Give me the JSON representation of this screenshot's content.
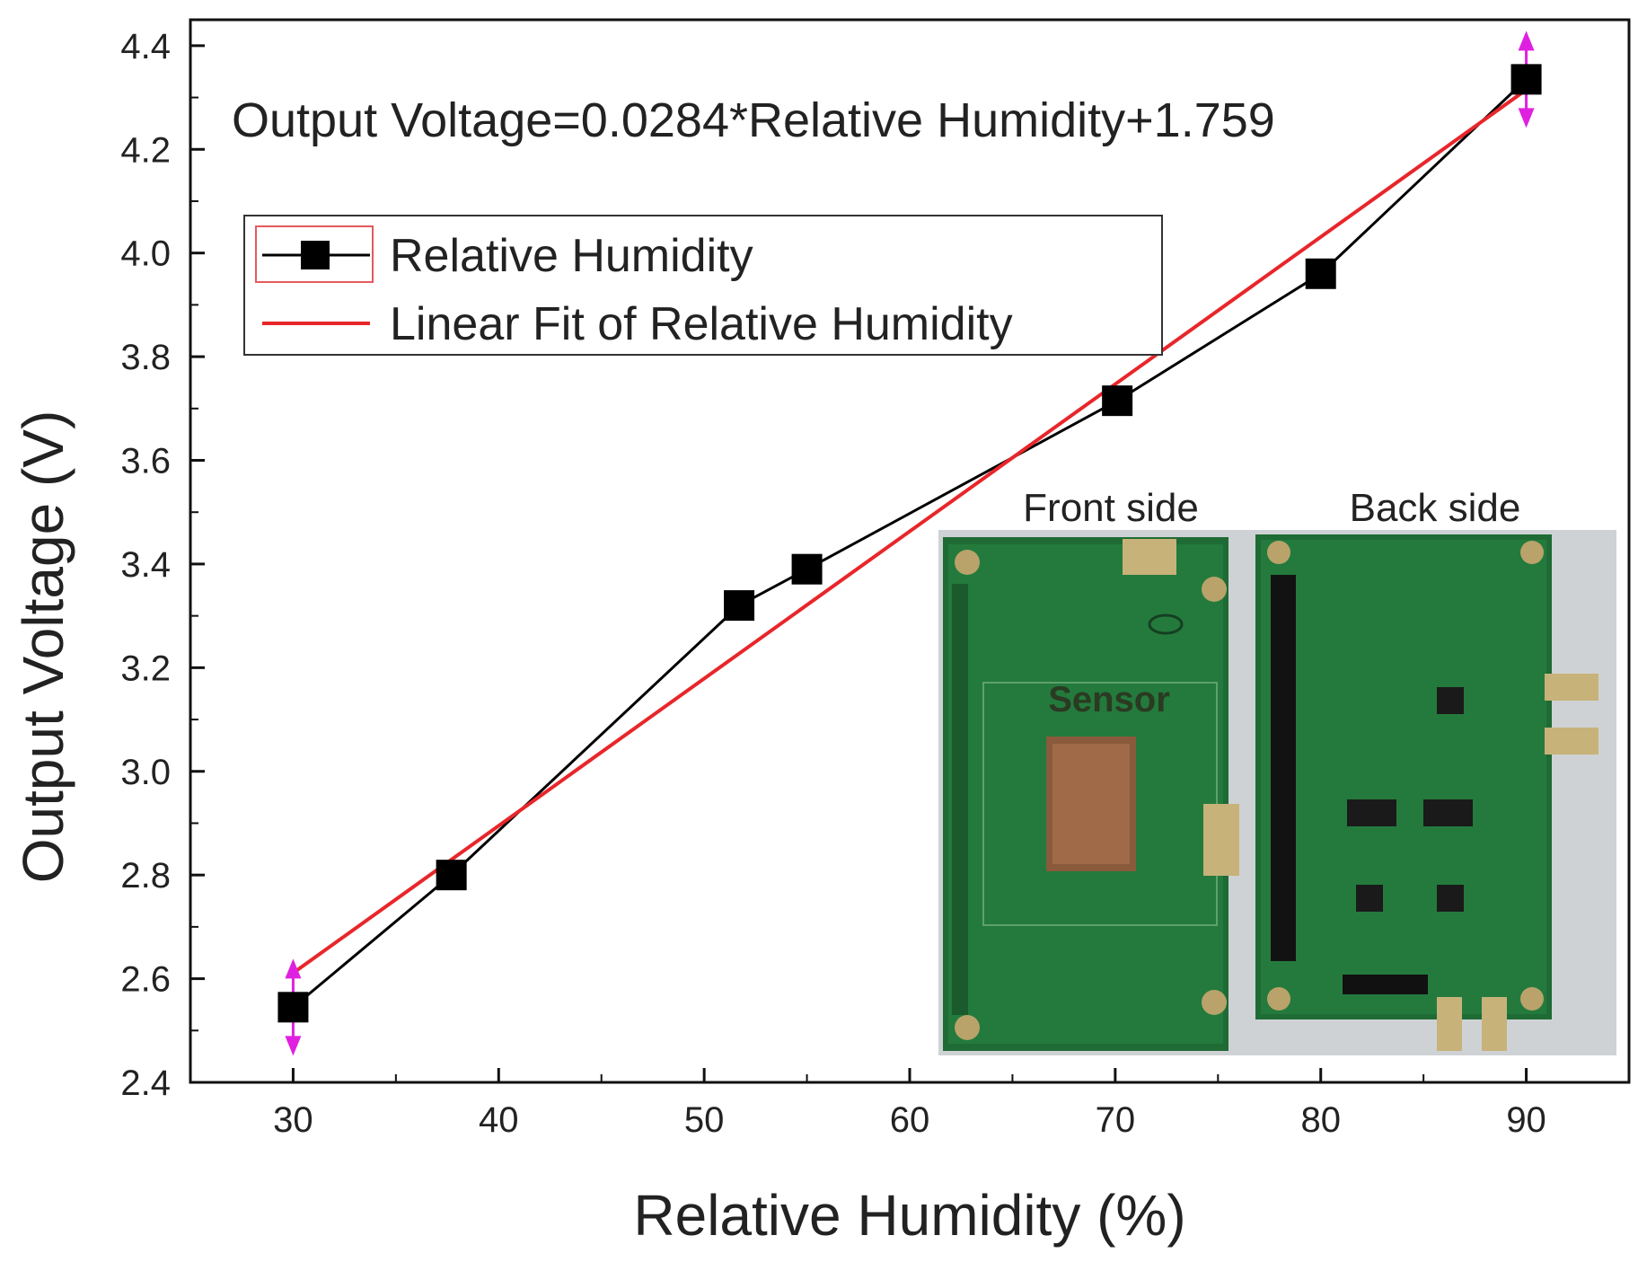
{
  "chart_data": {
    "type": "line",
    "xlabel": "Relative Humidity (%)",
    "ylabel": "Output Voltage (V)",
    "xlim": [
      25,
      95
    ],
    "ylim": [
      2.4,
      4.45
    ],
    "x_ticks": [
      "30",
      "40",
      "50",
      "60",
      "70",
      "80",
      "90"
    ],
    "y_ticks": [
      "2.4",
      "2.6",
      "2.8",
      "3.0",
      "3.2",
      "3.4",
      "3.6",
      "3.8",
      "4.0",
      "4.2",
      "4.4"
    ],
    "series": [
      {
        "name": "Relative Humidity",
        "type": "line+marker",
        "color": "#000000",
        "x": [
          30,
          37.7,
          51.7,
          55,
          70.1,
          80,
          90
        ],
        "y": [
          2.545,
          2.8,
          3.32,
          3.39,
          3.715,
          3.96,
          4.335
        ]
      },
      {
        "name": "Linear Fit of Relative Humidity",
        "type": "line",
        "color": "#e8262a",
        "x": [
          30,
          90
        ],
        "y": [
          2.611,
          4.315
        ]
      }
    ],
    "error_markers": [
      {
        "x": 30,
        "y": 2.545,
        "color": "#e020e0"
      },
      {
        "x": 90,
        "y": 4.335,
        "color": "#e020e0"
      }
    ],
    "annotation": "Output Voltage=0.0284*Relative Humidity+1.759",
    "legend_position": "top-left",
    "inset": {
      "front_label": "Front side",
      "back_label": "Back side",
      "sensor_label": "Sensor"
    }
  }
}
